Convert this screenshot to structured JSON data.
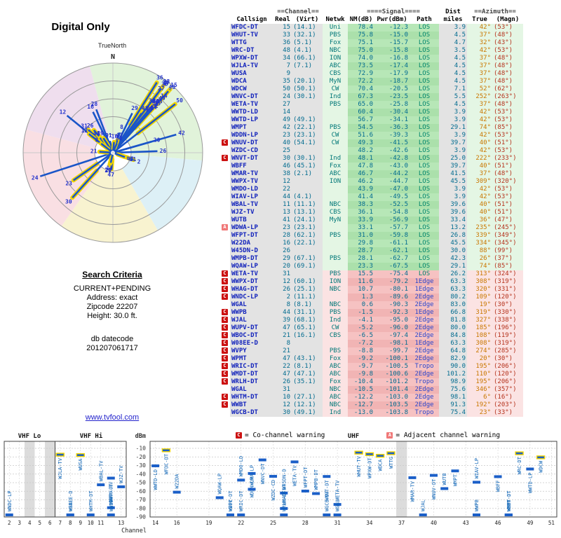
{
  "radar": {
    "title": "Digital Only",
    "true_north_label": "TrueNorth",
    "north_label": "N",
    "sectors": [
      {
        "from": 345,
        "to": 95,
        "color": "#e1f3da"
      },
      {
        "from": 95,
        "to": 150,
        "color": "#ddf0f6"
      },
      {
        "from": 150,
        "to": 215,
        "color": "#f8f3d0"
      },
      {
        "from": 215,
        "to": 285,
        "color": "#f9dfe3"
      },
      {
        "from": 285,
        "to": 345,
        "color": "#efdeee"
      }
    ]
  },
  "criteria": {
    "title": "Search Criteria",
    "lines": [
      "CURRENT+PENDING",
      "Address: exact",
      "Zipcode 22207",
      "Height: 30.0 ft."
    ],
    "datecode_label": "db datecode",
    "datecode": "201207061717"
  },
  "link_text": "www.tvfool.com",
  "table": {
    "header": {
      "deco_channel": "==Channel==",
      "deco_signal": "====Signal====",
      "dist": "Dist",
      "deco_azimuth": "==Azimuth==",
      "cols": [
        "Callsign",
        "Real",
        "(Virt)",
        "Netwk",
        "NM(dB)",
        "Pwr(dBm)",
        "Path",
        "miles",
        "True",
        "(Magn)"
      ]
    }
  },
  "legend": {
    "c_label": "C",
    "c_text": "= Co-channel warning",
    "a_label": "A",
    "a_text": "= Adjacent channel warning"
  },
  "chart": {
    "dbm_label": "dBm",
    "channel_label": "Channel",
    "vhf_lo_label": "VHF Lo",
    "vhf_hi_label": "VHF Hi",
    "uhf_label": "UHF",
    "dbm_ticks": [
      -10,
      -20,
      -30,
      -40,
      -50,
      -60,
      -70,
      -80,
      -90
    ],
    "vhf_channels": [
      2,
      3,
      4,
      5,
      6,
      7,
      8,
      9,
      10,
      11,
      13
    ],
    "uhf_channels": [
      14,
      16,
      19,
      22,
      25,
      28,
      31,
      34,
      37,
      40,
      43,
      46,
      49,
      51
    ],
    "gray_vhf": [
      4,
      6
    ],
    "gray_uhf": [
      37
    ]
  },
  "stations": [
    {
      "warn": "",
      "callsign": "WFDC-DT",
      "real": 15,
      "virt": "(14.1)",
      "netwk": "Uni",
      "nm": "78.4",
      "pwr": "-12.3",
      "path": "LOS",
      "dist": "3.9",
      "az": "42°",
      "magn": "(53°)",
      "zone": "green",
      "hl": true
    },
    {
      "warn": "",
      "callsign": "WHUT-TV",
      "real": 33,
      "virt": "(32.1)",
      "netwk": "PBS",
      "nm": "75.8",
      "pwr": "-15.0",
      "path": "LOS",
      "dist": "4.5",
      "az": "37°",
      "magn": "(48°)",
      "zone": "green",
      "hl": true
    },
    {
      "warn": "",
      "callsign": "WTTG",
      "real": 36,
      "virt": "(5.1)",
      "netwk": "Fox",
      "nm": "75.1",
      "pwr": "-15.7",
      "path": "LOS",
      "dist": "4.7",
      "az": "32°",
      "magn": "(43°)",
      "zone": "green",
      "hl": true
    },
    {
      "warn": "",
      "callsign": "WRC-DT",
      "real": 48,
      "virt": "(4.1)",
      "netwk": "NBC",
      "nm": "75.0",
      "pwr": "-15.8",
      "path": "LOS",
      "dist": "3.5",
      "az": "42°",
      "magn": "(53°)",
      "zone": "green",
      "hl": true
    },
    {
      "warn": "",
      "callsign": "WPXW-DT",
      "real": 34,
      "virt": "(66.1)",
      "netwk": "ION",
      "nm": "74.0",
      "pwr": "-16.8",
      "path": "LOS",
      "dist": "4.5",
      "az": "37°",
      "magn": "(48°)",
      "zone": "green",
      "hl": true
    },
    {
      "warn": "",
      "callsign": "WJLA-TV",
      "real": 7,
      "virt": "(7.1)",
      "netwk": "ABC",
      "nm": "73.5",
      "pwr": "-17.4",
      "path": "LOS",
      "dist": "4.5",
      "az": "37°",
      "magn": "(48°)",
      "zone": "green",
      "hl": true
    },
    {
      "warn": "",
      "callsign": "WUSA",
      "real": 9,
      "virt": "",
      "netwk": "CBS",
      "nm": "72.9",
      "pwr": "-17.9",
      "path": "LOS",
      "dist": "4.5",
      "az": "37°",
      "magn": "(48°)",
      "zone": "green",
      "hl": true
    },
    {
      "warn": "",
      "callsign": "WDCA",
      "real": 35,
      "virt": "(20.1)",
      "netwk": "MyN",
      "nm": "72.2",
      "pwr": "-18.7",
      "path": "LOS",
      "dist": "4.5",
      "az": "37°",
      "magn": "(48°)",
      "zone": "green",
      "hl": true
    },
    {
      "warn": "",
      "callsign": "WDCW",
      "real": 50,
      "virt": "(50.1)",
      "netwk": "CW",
      "nm": "70.4",
      "pwr": "-20.5",
      "path": "LOS",
      "dist": "7.1",
      "az": "52°",
      "magn": "(62°)",
      "zone": "green",
      "hl": true
    },
    {
      "warn": "",
      "callsign": "WNVC-DT",
      "real": 24,
      "virt": "(30.1)",
      "netwk": "Ind",
      "nm": "67.3",
      "pwr": "-23.5",
      "path": "LOS",
      "dist": "5.5",
      "az": "252°",
      "magn": "(263°)",
      "zone": "green",
      "hl": false
    },
    {
      "warn": "",
      "callsign": "WETA-TV",
      "real": 27,
      "virt": "",
      "netwk": "PBS",
      "nm": "65.0",
      "pwr": "-25.8",
      "path": "LOS",
      "dist": "4.5",
      "az": "37°",
      "magn": "(48°)",
      "zone": "green",
      "hl": false
    },
    {
      "warn": "",
      "callsign": "WWTD-LD",
      "real": 14,
      "virt": "",
      "netwk": "",
      "nm": "60.4",
      "pwr": "-30.4",
      "path": "LOS",
      "dist": "3.9",
      "az": "42°",
      "magn": "(53°)",
      "zone": "green",
      "hl": false
    },
    {
      "warn": "",
      "callsign": "WWTD-LP",
      "real": 49,
      "virt": "(49.1)",
      "netwk": "",
      "nm": "56.7",
      "pwr": "-34.1",
      "path": "LOS",
      "dist": "3.9",
      "az": "42°",
      "magn": "(53°)",
      "zone": "green",
      "hl": false
    },
    {
      "warn": "",
      "callsign": "WMPT",
      "real": 42,
      "virt": "(22.1)",
      "netwk": "PBS",
      "nm": "54.5",
      "pwr": "-36.3",
      "path": "LOS",
      "dist": "29.1",
      "az": "74°",
      "magn": "(85°)",
      "zone": "green",
      "hl": false
    },
    {
      "warn": "",
      "callsign": "WDDN-LP",
      "real": 23,
      "virt": "(23.1)",
      "netwk": "CW",
      "nm": "51.6",
      "pwr": "-39.3",
      "path": "LOS",
      "dist": "3.9",
      "az": "42°",
      "magn": "(53°)",
      "zone": "green",
      "hl": false
    },
    {
      "warn": "C",
      "callsign": "WNUV-DT",
      "real": 40,
      "virt": "(54.1)",
      "netwk": "CW",
      "nm": "49.3",
      "pwr": "-41.5",
      "path": "LOS",
      "dist": "39.7",
      "az": "40°",
      "magn": "(51°)",
      "zone": "green",
      "hl": false
    },
    {
      "warn": "",
      "callsign": "WZDC-CD",
      "real": 25,
      "virt": "",
      "netwk": "",
      "nm": "48.2",
      "pwr": "-42.6",
      "path": "LOS",
      "dist": "3.9",
      "az": "42°",
      "magn": "(53°)",
      "zone": "green",
      "hl": false
    },
    {
      "warn": "C",
      "callsign": "WNVT-DT",
      "real": 30,
      "virt": "(30.1)",
      "netwk": "Ind",
      "nm": "48.1",
      "pwr": "-42.8",
      "path": "LOS",
      "dist": "25.0",
      "az": "222°",
      "magn": "(233°)",
      "zone": "green",
      "hl": false
    },
    {
      "warn": "",
      "callsign": "WBFF",
      "real": 46,
      "virt": "(45.1)",
      "netwk": "Fox",
      "nm": "47.8",
      "pwr": "-43.0",
      "path": "LOS",
      "dist": "39.7",
      "az": "40°",
      "magn": "(51°)",
      "zone": "green",
      "hl": false
    },
    {
      "warn": "",
      "callsign": "WMAR-TV",
      "real": 38,
      "virt": "(2.1)",
      "netwk": "ABC",
      "nm": "46.7",
      "pwr": "-44.2",
      "path": "LOS",
      "dist": "41.5",
      "az": "37°",
      "magn": "(48°)",
      "zone": "green",
      "hl": false
    },
    {
      "warn": "",
      "callsign": "WWPX-TV",
      "real": 12,
      "virt": "",
      "netwk": "ION",
      "nm": "46.2",
      "pwr": "-44.7",
      "path": "LOS",
      "dist": "45.5",
      "az": "309°",
      "magn": "(320°)",
      "zone": "green",
      "hl": false
    },
    {
      "warn": "",
      "callsign": "WMDO-LD",
      "real": 22,
      "virt": "",
      "netwk": "",
      "nm": "43.9",
      "pwr": "-47.0",
      "path": "LOS",
      "dist": "3.9",
      "az": "42°",
      "magn": "(53°)",
      "zone": "green",
      "hl": false
    },
    {
      "warn": "",
      "callsign": "WIAV-LP",
      "real": 44,
      "virt": "(4.1)",
      "netwk": "",
      "nm": "41.4",
      "pwr": "-49.5",
      "path": "LOS",
      "dist": "3.9",
      "az": "42°",
      "magn": "(53°)",
      "zone": "green",
      "hl": false
    },
    {
      "warn": "",
      "callsign": "WBAL-TV",
      "real": 11,
      "virt": "(11.1)",
      "netwk": "NBC",
      "nm": "38.3",
      "pwr": "-52.5",
      "path": "LOS",
      "dist": "39.6",
      "az": "40°",
      "magn": "(51°)",
      "zone": "green",
      "hl": false
    },
    {
      "warn": "",
      "callsign": "WJZ-TV",
      "real": 13,
      "virt": "(13.1)",
      "netwk": "CBS",
      "nm": "36.1",
      "pwr": "-54.8",
      "path": "LOS",
      "dist": "39.6",
      "az": "40°",
      "magn": "(51°)",
      "zone": "green",
      "hl": false
    },
    {
      "warn": "",
      "callsign": "WUTB",
      "real": 41,
      "virt": "(24.1)",
      "netwk": "MyN",
      "nm": "33.9",
      "pwr": "-56.9",
      "path": "LOS",
      "dist": "33.4",
      "az": "36°",
      "magn": "(47°)",
      "zone": "green",
      "hl": false
    },
    {
      "warn": "A",
      "callsign": "WDWA-LP",
      "real": 23,
      "virt": "(23.1)",
      "netwk": "",
      "nm": "33.1",
      "pwr": "-57.7",
      "path": "LOS",
      "dist": "13.2",
      "az": "235°",
      "magn": "(245°)",
      "zone": "green",
      "hl": false
    },
    {
      "warn": "",
      "callsign": "WFPT-DT",
      "real": 28,
      "virt": "(62.1)",
      "netwk": "PBS",
      "nm": "31.0",
      "pwr": "-59.8",
      "path": "LOS",
      "dist": "26.8",
      "az": "339°",
      "magn": "(349°)",
      "zone": "green",
      "hl": false
    },
    {
      "warn": "",
      "callsign": "W22DA",
      "real": 16,
      "virt": "(22.1)",
      "netwk": "",
      "nm": "29.8",
      "pwr": "-61.1",
      "path": "LOS",
      "dist": "45.5",
      "az": "334°",
      "magn": "(345°)",
      "zone": "green",
      "hl": false
    },
    {
      "warn": "",
      "callsign": "W45DN-D",
      "real": 26,
      "virt": "",
      "netwk": "",
      "nm": "28.7",
      "pwr": "-62.1",
      "path": "LOS",
      "dist": "30.0",
      "az": "88°",
      "magn": "(99°)",
      "zone": "green",
      "hl": false
    },
    {
      "warn": "",
      "callsign": "WMPB-DT",
      "real": 29,
      "virt": "(67.1)",
      "netwk": "PBS",
      "nm": "28.1",
      "pwr": "-62.7",
      "path": "LOS",
      "dist": "42.3",
      "az": "26°",
      "magn": "(37°)",
      "zone": "green",
      "hl": false
    },
    {
      "warn": "",
      "callsign": "WQAW-LP",
      "real": 20,
      "virt": "(69.1)",
      "netwk": "",
      "nm": "23.3",
      "pwr": "-67.5",
      "path": "LOS",
      "dist": "29.1",
      "az": "74°",
      "magn": "(85°)",
      "zone": "green",
      "hl": false
    },
    {
      "warn": "C",
      "callsign": "WETA-TV",
      "real": 31,
      "virt": "",
      "netwk": "PBS",
      "nm": "15.5",
      "pwr": "-75.4",
      "path": "LOS",
      "dist": "26.2",
      "az": "313°",
      "magn": "(324°)",
      "zone": "pink",
      "hl": false
    },
    {
      "warn": "C",
      "callsign": "WWPX-DT",
      "real": 12,
      "virt": "(60.1)",
      "netwk": "ION",
      "nm": "11.6",
      "pwr": "-79.2",
      "path": "1Edge",
      "dist": "63.3",
      "az": "308°",
      "magn": "(319°)",
      "zone": "pink",
      "hl": false
    },
    {
      "warn": "C",
      "callsign": "WHAG-DT",
      "real": 26,
      "virt": "(25.1)",
      "netwk": "NBC",
      "nm": "10.7",
      "pwr": "-80.1",
      "path": "1Edge",
      "dist": "63.3",
      "az": "320°",
      "magn": "(331°)",
      "zone": "pink",
      "hl": false
    },
    {
      "warn": "C",
      "callsign": "WNDC-LP",
      "real": 2,
      "virt": "(11.1)",
      "netwk": "",
      "nm": "1.3",
      "pwr": "-89.6",
      "path": "2Edge",
      "dist": "80.2",
      "az": "109°",
      "magn": "(120°)",
      "zone": "pink",
      "hl": false
    },
    {
      "warn": "",
      "callsign": "WGAL",
      "real": 8,
      "virt": "(8.1)",
      "netwk": "NBC",
      "nm": "0.6",
      "pwr": "-90.3",
      "path": "2Edge",
      "dist": "83.0",
      "az": "19°",
      "magn": "(30°)",
      "zone": "pink",
      "hl": false
    },
    {
      "warn": "C",
      "callsign": "WWPB",
      "real": 44,
      "virt": "(31.1)",
      "netwk": "PBS",
      "nm": "-1.5",
      "pwr": "-92.3",
      "path": "1Edge",
      "dist": "66.8",
      "az": "319°",
      "magn": "(330°)",
      "zone": "pink",
      "hl": false
    },
    {
      "warn": "C",
      "callsign": "WJAL",
      "real": 39,
      "virt": "(68.1)",
      "netwk": "Ind",
      "nm": "-4.1",
      "pwr": "-95.0",
      "path": "2Edge",
      "dist": "81.8",
      "az": "327°",
      "magn": "(338°)",
      "zone": "pink",
      "hl": false
    },
    {
      "warn": "C",
      "callsign": "WUPV-DT",
      "real": 47,
      "virt": "(65.1)",
      "netwk": "CW",
      "nm": "-5.2",
      "pwr": "-96.0",
      "path": "2Edge",
      "dist": "80.0",
      "az": "185°",
      "magn": "(196°)",
      "zone": "pink",
      "hl": false
    },
    {
      "warn": "C",
      "callsign": "WBOC-DT",
      "real": 21,
      "virt": "(16.1)",
      "netwk": "CBS",
      "nm": "-6.5",
      "pwr": "-97.4",
      "path": "2Edge",
      "dist": "84.8",
      "az": "108°",
      "magn": "(119°)",
      "zone": "pink",
      "hl": false
    },
    {
      "warn": "C",
      "callsign": "W08EE-D",
      "real": 8,
      "virt": "",
      "netwk": "",
      "nm": "-7.2",
      "pwr": "-98.1",
      "path": "1Edge",
      "dist": "63.3",
      "az": "308°",
      "magn": "(319°)",
      "zone": "pink",
      "hl": false
    },
    {
      "warn": "C",
      "callsign": "WVPY",
      "real": 21,
      "virt": "",
      "netwk": "PBS",
      "nm": "-8.8",
      "pwr": "-99.7",
      "path": "2Edge",
      "dist": "64.8",
      "az": "274°",
      "magn": "(285°)",
      "zone": "pink",
      "hl": false
    },
    {
      "warn": "C",
      "callsign": "WPMT",
      "real": 47,
      "virt": "(43.1)",
      "netwk": "Fox",
      "nm": "-9.2",
      "pwr": "-100.1",
      "path": "2Edge",
      "dist": "82.9",
      "az": "20°",
      "magn": "(30°)",
      "zone": "pink",
      "hl": false
    },
    {
      "warn": "C",
      "callsign": "WRIC-DT",
      "real": 22,
      "virt": "(8.1)",
      "netwk": "ABC",
      "nm": "-9.7",
      "pwr": "-100.5",
      "path": "Tropo",
      "dist": "90.0",
      "az": "195°",
      "magn": "(206°)",
      "zone": "pink",
      "hl": false
    },
    {
      "warn": "C",
      "callsign": "WMDT-DT",
      "real": 47,
      "virt": "(47.1)",
      "netwk": "ABC",
      "nm": "-9.8",
      "pwr": "-100.6",
      "path": "2Edge",
      "dist": "101.2",
      "az": "110°",
      "magn": "(120°)",
      "zone": "pink",
      "hl": false
    },
    {
      "warn": "C",
      "callsign": "WRLH-DT",
      "real": 26,
      "virt": "(35.1)",
      "netwk": "Fox",
      "nm": "-10.4",
      "pwr": "-101.2",
      "path": "Tropo",
      "dist": "98.9",
      "az": "195°",
      "magn": "(206°)",
      "zone": "pink",
      "hl": false
    },
    {
      "warn": "",
      "callsign": "WGAL",
      "real": 31,
      "virt": "",
      "netwk": "NBC",
      "nm": "-10.5",
      "pwr": "-101.4",
      "path": "2Edge",
      "dist": "75.6",
      "az": "346°",
      "magn": "(357°)",
      "zone": "pink",
      "hl": false
    },
    {
      "warn": "C",
      "callsign": "WHTM-DT",
      "real": 10,
      "virt": "(27.1)",
      "netwk": "ABC",
      "nm": "-12.2",
      "pwr": "-103.0",
      "path": "2Edge",
      "dist": "98.1",
      "az": "6°",
      "magn": "(16°)",
      "zone": "pink",
      "hl": false
    },
    {
      "warn": "C",
      "callsign": "WWBT",
      "real": 12,
      "virt": "(12.1)",
      "netwk": "NBC",
      "nm": "-12.7",
      "pwr": "-103.5",
      "path": "2Edge",
      "dist": "91.3",
      "az": "192°",
      "magn": "(203°)",
      "zone": "pink",
      "hl": false
    },
    {
      "warn": "",
      "callsign": "WGCB-DT",
      "real": 30,
      "virt": "(49.1)",
      "netwk": "Ind",
      "nm": "-13.0",
      "pwr": "-103.8",
      "path": "Tropo",
      "dist": "75.4",
      "az": "23°",
      "magn": "(33°)",
      "zone": "pink",
      "hl": false
    }
  ]
}
